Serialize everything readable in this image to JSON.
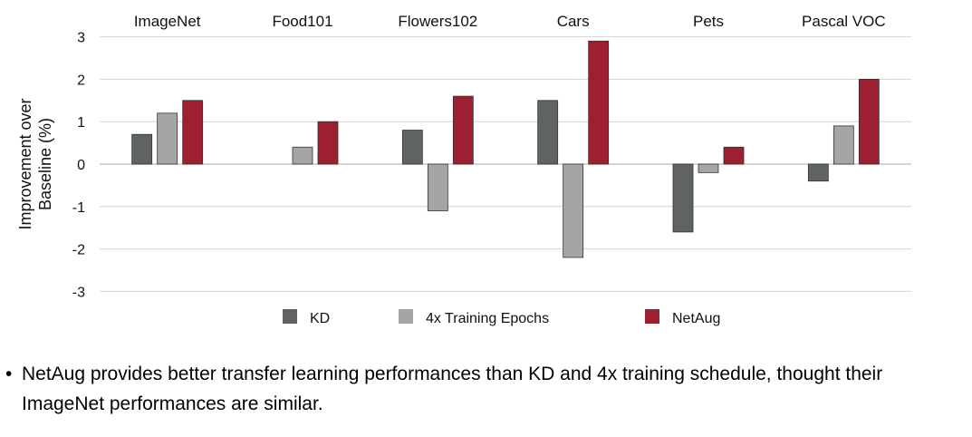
{
  "chart_data": {
    "type": "bar",
    "categories": [
      "ImageNet",
      "Food101",
      "Flowers102",
      "Cars",
      "Pets",
      "Pascal VOC"
    ],
    "series": [
      {
        "name": "KD",
        "values": [
          0.7,
          0,
          0.8,
          1.5,
          -1.6,
          -0.4
        ],
        "color": "#5f6461"
      },
      {
        "name": "4x Training Epochs",
        "values": [
          1.2,
          0.4,
          -1.1,
          -2.2,
          -0.2,
          0.9
        ],
        "color": "#a5a5a5"
      },
      {
        "name": "NetAug",
        "values": [
          1.5,
          1.0,
          1.6,
          2.9,
          0.4,
          2.0
        ],
        "color": "#9c1f32"
      }
    ],
    "ylabel": "Improvement over Baseline (%)",
    "ylabel_lines": [
      "Improvement over",
      "Baseline (%)"
    ],
    "ylim": [
      -3,
      3
    ],
    "yticks": [
      3,
      2,
      1,
      0,
      -1,
      -2,
      -3
    ],
    "grid": true,
    "category_labels_position": "top",
    "legend_position": "bottom"
  },
  "caption": {
    "bullet": "•",
    "text": "NetAug provides better transfer learning performances than KD and 4x training schedule, thought their ImageNet performances are similar."
  }
}
